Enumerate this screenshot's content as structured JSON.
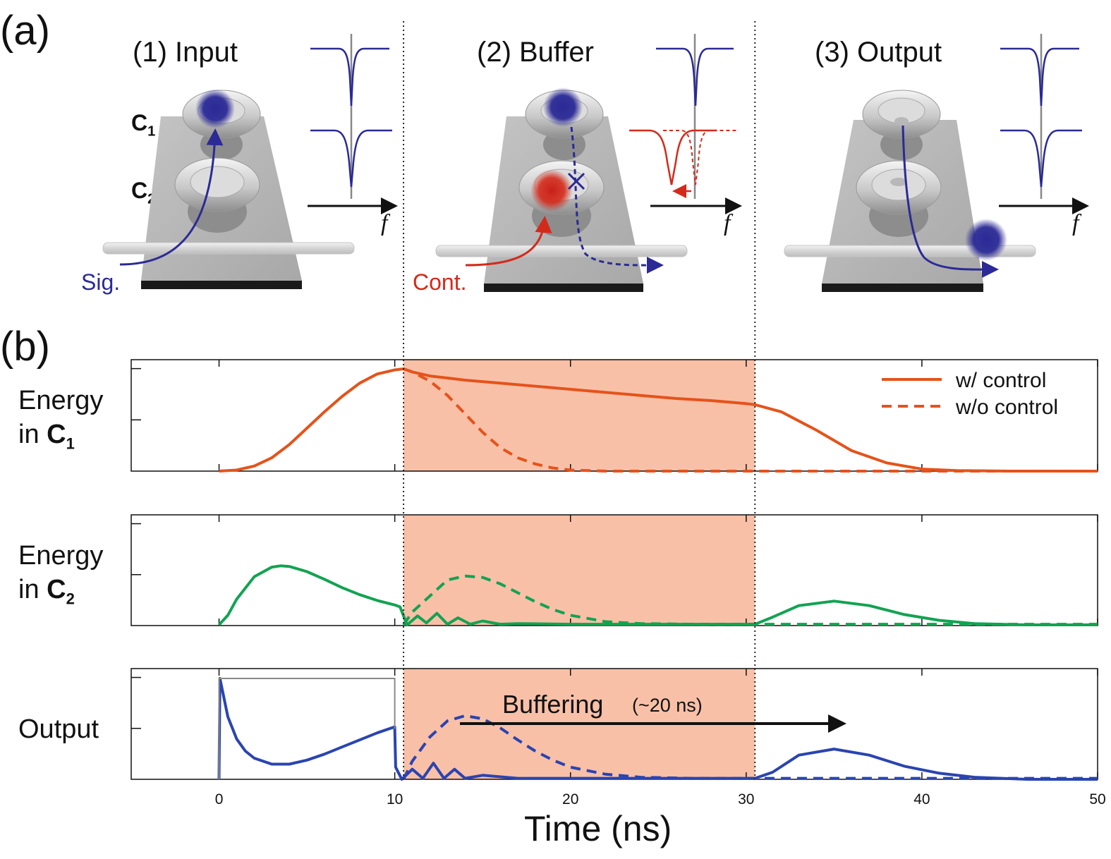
{
  "panel_a": {
    "letter": "(a)",
    "stages": [
      {
        "title": "(1) Input"
      },
      {
        "title": "(2) Buffer"
      },
      {
        "title": "(3) Output"
      }
    ],
    "cavity_labels": {
      "c1_main": "C",
      "c1_sub": "1",
      "c2_main": "C",
      "c2_sub": "2"
    },
    "freq_axis_label": "f",
    "signal_label": "Sig.",
    "control_label": "Cont.",
    "colors": {
      "signal": "#2b2a96",
      "control": "#d42a1a",
      "device": "#b3b3b3",
      "base": "#1a1a1a"
    }
  },
  "panel_b": {
    "letter": "(b)",
    "ylabels": [
      {
        "line1": "Energy",
        "line2": "in ",
        "bold": "C",
        "sub": "1"
      },
      {
        "line1": "Energy",
        "line2": "in ",
        "bold": "C",
        "sub": "2"
      },
      {
        "line1": "Output",
        "line2": "",
        "bold": "",
        "sub": ""
      }
    ],
    "xlabel": "Time (ns)",
    "legend": {
      "solid": "w/ control",
      "dashed": "w/o control"
    },
    "annotation": {
      "main": "Buffering",
      "detail": "(~20 ns)"
    }
  },
  "chart_data": {
    "type": "line",
    "x_unit": "ns",
    "xlim": [
      -5,
      50
    ],
    "xticks": [
      0,
      10,
      20,
      30,
      40,
      50
    ],
    "buffer_window": [
      10.5,
      30.5
    ],
    "colors": {
      "c1": "#e5531a",
      "c2": "#12a352",
      "output": "#2a44b0",
      "shade": "#f9c0a8",
      "input_pulse": "#8a8a8a"
    },
    "series": [
      {
        "name": "Energy in C1 (w/ control)",
        "style": "solid",
        "color": "#e5531a",
        "x": [
          0,
          1,
          2,
          3,
          4,
          5,
          6,
          7,
          8,
          9,
          10,
          10.5,
          11,
          12,
          13,
          14,
          16,
          18,
          20,
          22,
          24,
          26,
          28,
          30,
          30.5,
          32,
          34,
          36,
          38,
          40,
          42,
          45,
          50
        ],
        "y": [
          0.0,
          0.01,
          0.05,
          0.13,
          0.26,
          0.42,
          0.58,
          0.73,
          0.86,
          0.95,
          0.99,
          1.0,
          0.97,
          0.93,
          0.91,
          0.89,
          0.86,
          0.83,
          0.8,
          0.77,
          0.74,
          0.71,
          0.69,
          0.66,
          0.65,
          0.58,
          0.4,
          0.2,
          0.08,
          0.02,
          0.005,
          0.0,
          0.0
        ]
      },
      {
        "name": "Energy in C1 (w/o control)",
        "style": "dashed",
        "color": "#e5531a",
        "x": [
          10.5,
          11,
          12,
          13,
          14,
          15,
          16,
          17,
          18,
          19,
          20,
          22,
          25,
          30,
          40,
          50
        ],
        "y": [
          1.0,
          0.97,
          0.88,
          0.74,
          0.56,
          0.38,
          0.23,
          0.13,
          0.07,
          0.03,
          0.01,
          0.0,
          0.0,
          0.0,
          0.0,
          0.0
        ]
      },
      {
        "name": "Energy in C2 (w/ control)",
        "style": "solid",
        "color": "#12a352",
        "x": [
          0,
          0.5,
          1,
          2,
          3,
          3.5,
          4,
          5,
          6,
          7,
          8,
          9,
          10,
          10.3,
          10.7,
          11.3,
          11.8,
          12.4,
          13,
          13.6,
          14.3,
          15,
          16,
          17,
          20,
          25,
          30.5,
          31.5,
          33,
          35,
          37,
          39,
          41,
          43,
          46,
          50
        ],
        "y": [
          0.0,
          0.15,
          0.4,
          0.75,
          0.9,
          0.92,
          0.91,
          0.83,
          0.71,
          0.58,
          0.47,
          0.38,
          0.31,
          0.28,
          0.0,
          0.14,
          0.03,
          0.18,
          0.01,
          0.11,
          0.01,
          0.06,
          0.01,
          0.02,
          0.01,
          0.01,
          0.01,
          0.12,
          0.3,
          0.37,
          0.3,
          0.16,
          0.07,
          0.02,
          0.0,
          0.0
        ]
      },
      {
        "name": "Energy in C2 (w/o control)",
        "style": "dashed",
        "color": "#12a352",
        "x": [
          10.5,
          11,
          12,
          13,
          14,
          15,
          16,
          17,
          18,
          19,
          20,
          22,
          24,
          27,
          30,
          35,
          40,
          50
        ],
        "y": [
          0.0,
          0.2,
          0.45,
          0.7,
          0.76,
          0.74,
          0.64,
          0.5,
          0.36,
          0.24,
          0.15,
          0.05,
          0.02,
          0.01,
          0.01,
          0.01,
          0.01,
          0.01
        ]
      },
      {
        "name": "Output (w/ control)",
        "style": "solid",
        "color": "#2a44b0",
        "x": [
          0,
          0.05,
          0.5,
          1,
          1.5,
          2,
          3,
          4,
          5,
          6,
          7,
          8,
          9,
          10,
          10.05,
          10.4,
          11,
          11.6,
          12.2,
          12.8,
          13.4,
          14,
          15,
          17,
          20,
          25,
          30.5,
          31.5,
          33,
          35,
          37,
          39,
          41,
          43,
          46,
          50
        ],
        "y": [
          0.0,
          1.0,
          0.62,
          0.4,
          0.28,
          0.21,
          0.15,
          0.15,
          0.19,
          0.25,
          0.32,
          0.39,
          0.46,
          0.52,
          0.12,
          0.0,
          0.1,
          0.01,
          0.16,
          0.01,
          0.1,
          0.01,
          0.04,
          0.01,
          0.01,
          0.01,
          0.01,
          0.07,
          0.24,
          0.3,
          0.24,
          0.13,
          0.06,
          0.02,
          0.0,
          0.0
        ]
      },
      {
        "name": "Output (w/o control)",
        "style": "dashed",
        "color": "#2a44b0",
        "x": [
          10.5,
          11,
          12,
          13,
          14,
          15,
          16,
          17,
          18,
          19,
          20,
          22,
          24,
          27,
          30,
          35,
          40,
          50
        ],
        "y": [
          0.0,
          0.18,
          0.42,
          0.58,
          0.63,
          0.6,
          0.51,
          0.39,
          0.28,
          0.19,
          0.12,
          0.05,
          0.02,
          0.01,
          0.01,
          0.01,
          0.01,
          0.01
        ]
      },
      {
        "name": "Input pulse",
        "style": "solid",
        "color": "#8a8a8a",
        "x": [
          0,
          0,
          10,
          10
        ],
        "y": [
          0,
          1.0,
          1.0,
          0.5
        ]
      }
    ]
  }
}
